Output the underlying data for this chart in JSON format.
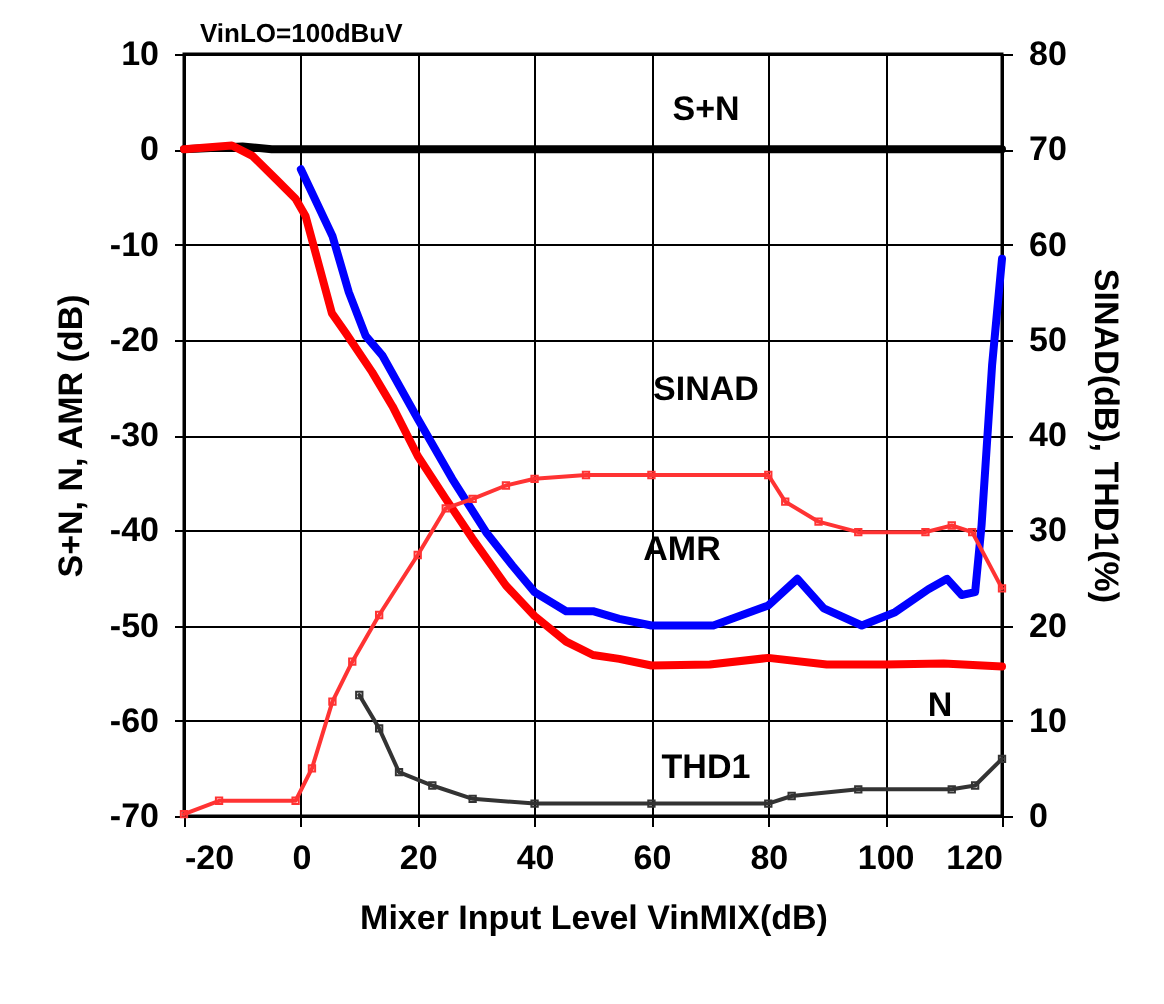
{
  "chart_data": {
    "type": "line",
    "xlabel": "Mixer Input Level VinMIX(dB)",
    "ylabel": "S+N, N, AMR (dB)",
    "y2label": "SINAD(dB), THD1(%)",
    "xlim": [
      -20,
      120
    ],
    "xticks": [
      -20,
      0,
      20,
      40,
      60,
      80,
      100,
      120
    ],
    "ylim": [
      -70,
      10
    ],
    "yticks": [
      -70,
      -60,
      -50,
      -40,
      -30,
      -20,
      -10,
      0,
      10
    ],
    "y2lim": [
      0,
      80
    ],
    "y2ticks": [
      0,
      10,
      20,
      30,
      40,
      50,
      60,
      70,
      80
    ],
    "grid": true,
    "legend": false,
    "series": [
      {
        "name": "S+N",
        "color": "#000000",
        "x": [
          -20,
          -10,
          -5,
          120
        ],
        "values": [
          0,
          0.3,
          0,
          0
        ]
      },
      {
        "name": "N",
        "color": "#ff0000",
        "x": [
          -20,
          -11.8,
          -8.3,
          -4.3,
          -0.9,
          0.8,
          3.1,
          5.3,
          7.7,
          12.2,
          15.7,
          20,
          24.8,
          29.4,
          35.1,
          40,
          45.4,
          50,
          54.5,
          60,
          70,
          80,
          90,
          100,
          110,
          120
        ],
        "values": [
          0,
          0.4,
          -0.7,
          -3.1,
          -5.2,
          -7,
          -12.2,
          -17.2,
          -19.3,
          -23.4,
          -27,
          -32.2,
          -36.7,
          -40.9,
          -45.8,
          -49,
          -51.7,
          -53.1,
          -53.5,
          -54.2,
          -54.1,
          -53.4,
          -54.1,
          -54.1,
          -54,
          -54.3
        ]
      },
      {
        "name": "AMR",
        "color": "#0000ff",
        "x": [
          0,
          5.4,
          8.2,
          11.1,
          14,
          20,
          25.9,
          31.7,
          36.2,
          40,
          45.4,
          50,
          54.5,
          60,
          70.6,
          80,
          85,
          89.5,
          96,
          101.7,
          107.4,
          110.6,
          113.1,
          115.4,
          116.5,
          118.3,
          120
        ],
        "values": [
          -2.1,
          -9.1,
          -15,
          -19.6,
          -21.7,
          -28.3,
          -34.6,
          -40.2,
          -43.7,
          -46.5,
          -48.5,
          -48.5,
          -49.3,
          -50,
          -50,
          -47.9,
          -45.1,
          -48.2,
          -50,
          -48.6,
          -46.2,
          -45.1,
          -46.8,
          -46.5,
          -39.5,
          -22.7,
          -11.5
        ]
      },
      {
        "name": "SINAD",
        "color": "#ff3333",
        "axis": "y2",
        "marker": "square",
        "x": [
          -20,
          -14,
          -0.9,
          1.9,
          5.4,
          8.8,
          13.4,
          20,
          24.8,
          29.4,
          35.1,
          40,
          48.8,
          60,
          80,
          82.9,
          88.6,
          95.4,
          106.9,
          111.4,
          114.9,
          120
        ],
        "values": [
          0.2,
          1.6,
          1.6,
          5,
          12,
          16.2,
          21.1,
          27.4,
          32.3,
          33.3,
          34.7,
          35.4,
          35.8,
          35.8,
          35.8,
          33,
          30.9,
          29.8,
          29.8,
          30.5,
          29.8,
          23.9
        ]
      },
      {
        "name": "THD1",
        "color": "#333333",
        "axis": "y2",
        "marker": "square",
        "x": [
          10,
          13.4,
          16.8,
          22.5,
          29.4,
          40,
          60,
          80,
          84,
          95.4,
          111.4,
          115.4,
          120
        ],
        "values": [
          12.7,
          9.2,
          4.6,
          3.2,
          1.8,
          1.3,
          1.3,
          1.3,
          2.1,
          2.8,
          2.8,
          3.2,
          6
        ]
      }
    ],
    "annotations": [
      "VinLO=100dBuV"
    ]
  }
}
